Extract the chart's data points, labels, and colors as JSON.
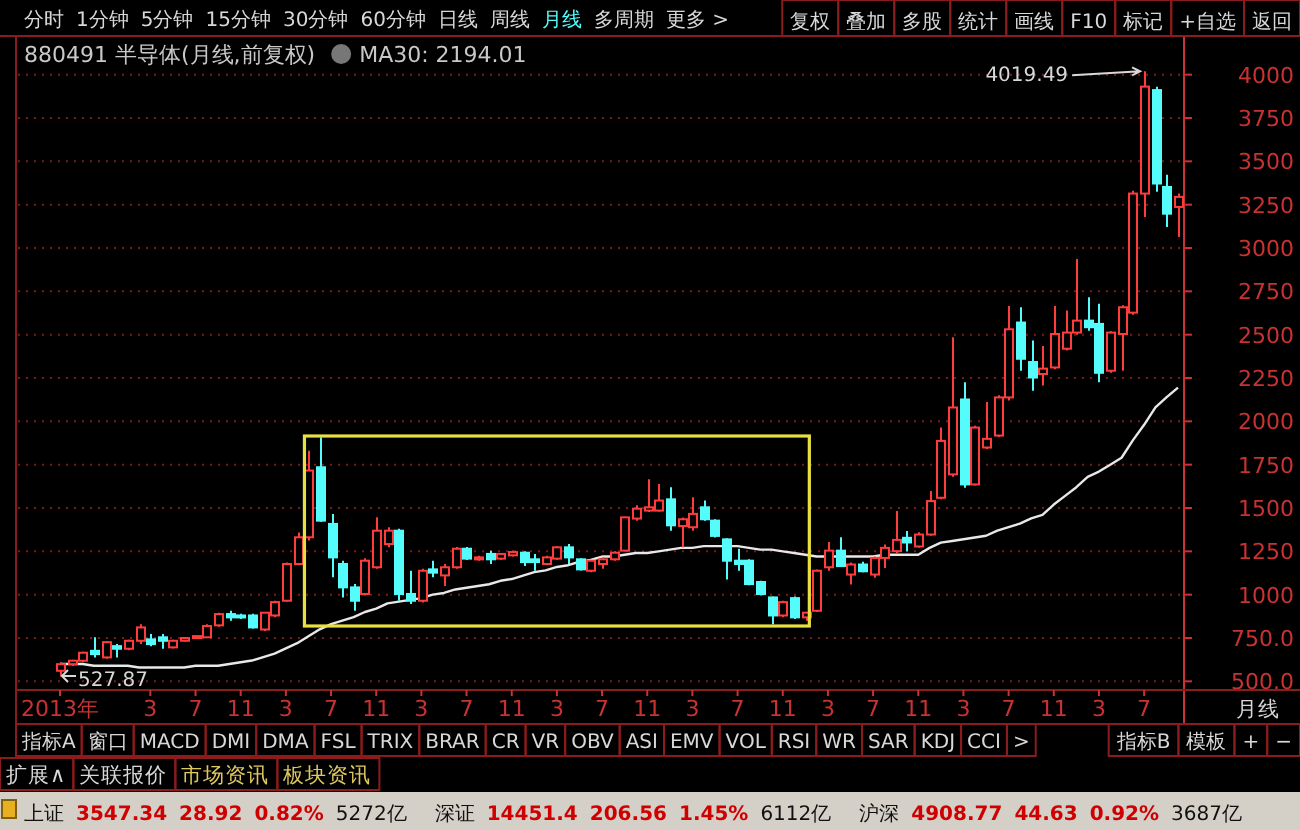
{
  "chart_data": {
    "type": "candlestick",
    "title": "880491 半导体(月线,前复权)",
    "categories": [
      "2013年",
      null,
      null,
      null,
      null,
      null,
      null,
      null,
      "3",
      null,
      null,
      null,
      "7",
      null,
      null,
      null,
      "11",
      null,
      null,
      null,
      "3",
      null,
      null,
      null,
      "7",
      null,
      null,
      null,
      "11",
      null,
      null,
      null,
      "3",
      null,
      null,
      null,
      "7",
      null,
      null,
      null,
      "11",
      null,
      null,
      null,
      "3",
      null,
      null,
      null,
      "7",
      null,
      null,
      null,
      "11",
      null,
      null,
      null,
      "3",
      null,
      null,
      null,
      "7",
      null,
      null,
      null,
      "11",
      null,
      null,
      null,
      "3",
      null,
      null,
      null,
      "7",
      null,
      null,
      null,
      "11",
      null,
      null,
      null,
      "3",
      null,
      null,
      null,
      "7",
      null,
      null,
      null,
      "11",
      null,
      null,
      null,
      "3",
      null,
      null,
      null,
      "7",
      null,
      null,
      null
    ],
    "ohlc": [
      [
        561,
        610,
        527.87,
        599
      ],
      [
        599,
        625,
        590,
        619
      ],
      [
        619,
        670,
        610,
        665
      ],
      [
        676,
        754,
        638,
        657
      ],
      [
        638,
        730,
        630,
        726
      ],
      [
        703,
        715,
        638,
        688
      ],
      [
        688,
        740,
        680,
        734
      ],
      [
        734,
        830,
        715,
        811
      ],
      [
        742,
        773,
        703,
        715
      ],
      [
        754,
        773,
        688,
        734
      ],
      [
        696,
        740,
        690,
        734
      ],
      [
        734,
        755,
        730,
        750
      ],
      [
        750,
        765,
        745,
        761
      ],
      [
        754,
        830,
        750,
        819
      ],
      [
        823,
        895,
        815,
        888
      ],
      [
        888,
        907,
        850,
        869
      ],
      [
        880,
        890,
        860,
        869
      ],
      [
        880,
        890,
        805,
        811
      ],
      [
        799,
        900,
        790,
        896
      ],
      [
        880,
        965,
        870,
        957
      ],
      [
        965,
        1185,
        960,
        1177
      ],
      [
        1177,
        1358,
        1170,
        1331
      ],
      [
        1331,
        1831,
        1312,
        1716
      ],
      [
        1735,
        1908,
        1420,
        1427
      ],
      [
        1408,
        1466,
        1100,
        1215
      ],
      [
        1177,
        1196,
        984,
        1042
      ],
      [
        1042,
        1061,
        907,
        965
      ],
      [
        1004,
        1210,
        995,
        1196
      ],
      [
        1158,
        1446,
        1150,
        1369
      ],
      [
        1292,
        1389,
        1273,
        1369
      ],
      [
        1369,
        1380,
        965,
        1004
      ],
      [
        1004,
        1138,
        946,
        965
      ],
      [
        965,
        1150,
        955,
        1138
      ],
      [
        1146,
        1196,
        1100,
        1127
      ],
      [
        1111,
        1177,
        1050,
        1158
      ],
      [
        1158,
        1275,
        1150,
        1265
      ],
      [
        1265,
        1275,
        1200,
        1208
      ],
      [
        1204,
        1225,
        1195,
        1215
      ],
      [
        1235,
        1254,
        1177,
        1204
      ],
      [
        1208,
        1240,
        1200,
        1235
      ],
      [
        1227,
        1255,
        1220,
        1246
      ],
      [
        1242,
        1250,
        1165,
        1188
      ],
      [
        1204,
        1235,
        1138,
        1188
      ],
      [
        1177,
        1225,
        1170,
        1215
      ],
      [
        1208,
        1280,
        1200,
        1273
      ],
      [
        1273,
        1292,
        1177,
        1215
      ],
      [
        1204,
        1210,
        1140,
        1146
      ],
      [
        1138,
        1200,
        1130,
        1196
      ],
      [
        1177,
        1215,
        1150,
        1204
      ],
      [
        1204,
        1250,
        1195,
        1242
      ],
      [
        1254,
        1450,
        1250,
        1446
      ],
      [
        1439,
        1516,
        1427,
        1496
      ],
      [
        1485,
        1666,
        1477,
        1504
      ],
      [
        1485,
        1639,
        1480,
        1543
      ],
      [
        1550,
        1620,
        1369,
        1400
      ],
      [
        1396,
        1445,
        1273,
        1435
      ],
      [
        1389,
        1562,
        1369,
        1466
      ],
      [
        1504,
        1543,
        1427,
        1435
      ],
      [
        1427,
        1435,
        1330,
        1339
      ],
      [
        1319,
        1325,
        1088,
        1196
      ],
      [
        1196,
        1265,
        1138,
        1177
      ],
      [
        1196,
        1205,
        1055,
        1061
      ],
      [
        1073,
        1080,
        995,
        1004
      ],
      [
        984,
        990,
        830,
        880
      ],
      [
        880,
        965,
        870,
        957
      ],
      [
        980,
        990,
        860,
        869
      ],
      [
        869,
        900,
        850,
        896
      ],
      [
        907,
        1145,
        900,
        1138
      ],
      [
        1158,
        1304,
        1138,
        1254
      ],
      [
        1254,
        1331,
        1160,
        1165
      ],
      [
        1116,
        1185,
        1058,
        1174
      ],
      [
        1174,
        1190,
        1130,
        1135
      ],
      [
        1116,
        1220,
        1097,
        1212
      ],
      [
        1212,
        1289,
        1154,
        1270
      ],
      [
        1251,
        1482,
        1240,
        1316
      ],
      [
        1328,
        1367,
        1251,
        1301
      ],
      [
        1278,
        1360,
        1270,
        1347
      ],
      [
        1347,
        1598,
        1340,
        1540
      ],
      [
        1559,
        1964,
        1550,
        1887
      ],
      [
        1694,
        2485,
        1680,
        2080
      ],
      [
        2126,
        2226,
        1617,
        1636
      ],
      [
        1636,
        1975,
        1630,
        1964
      ],
      [
        1849,
        2111,
        1840,
        1899
      ],
      [
        1918,
        2150,
        1910,
        2138
      ],
      [
        2138,
        2666,
        2120,
        2531
      ],
      [
        2570,
        2658,
        2292,
        2361
      ],
      [
        2342,
        2466,
        2176,
        2253
      ],
      [
        2273,
        2435,
        2207,
        2304
      ],
      [
        2311,
        2666,
        2300,
        2504
      ],
      [
        2419,
        2639,
        2408,
        2512
      ],
      [
        2512,
        2936,
        2500,
        2581
      ],
      [
        2581,
        2716,
        2523,
        2543
      ],
      [
        2562,
        2678,
        2226,
        2280
      ],
      [
        2292,
        2520,
        2280,
        2512
      ],
      [
        2504,
        2670,
        2292,
        2658
      ],
      [
        2627,
        3330,
        2615,
        3314
      ],
      [
        3314,
        4019.49,
        3179,
        3931
      ],
      [
        3911,
        3931,
        3325,
        3372
      ],
      [
        3352,
        3422,
        3121,
        3198
      ],
      [
        3237,
        3314,
        3063,
        3295
      ]
    ],
    "series": [
      {
        "name": "MA30: 2194.01",
        "type": "line",
        "color": "#e8e8e8",
        "values": [
          600,
          600,
          600,
          590,
          590,
          590,
          590,
          580,
          580,
          580,
          580,
          580,
          590,
          590,
          590,
          600,
          610,
          620,
          640,
          660,
          690,
          720,
          760,
          800,
          830,
          850,
          870,
          900,
          920,
          950,
          960,
          970,
          980,
          1000,
          1010,
          1030,
          1040,
          1050,
          1060,
          1080,
          1090,
          1110,
          1130,
          1140,
          1160,
          1170,
          1190,
          1200,
          1220,
          1220,
          1230,
          1240,
          1240,
          1250,
          1260,
          1270,
          1270,
          1280,
          1280,
          1280,
          1280,
          1270,
          1260,
          1260,
          1250,
          1240,
          1230,
          1220,
          1220,
          1220,
          1220,
          1220,
          1220,
          1230,
          1230,
          1230,
          1230,
          1270,
          1300,
          1310,
          1320,
          1330,
          1340,
          1370,
          1390,
          1410,
          1440,
          1460,
          1520,
          1570,
          1620,
          1680,
          1710,
          1750,
          1790,
          1890,
          1980,
          2080,
          2140,
          2194.01
        ]
      }
    ],
    "ylim": [
      450,
      4200
    ],
    "yticks": [
      {
        "value": 500,
        "label": "500.0"
      },
      {
        "value": 750,
        "label": "750.0"
      },
      1000,
      1250,
      1500,
      1750,
      2000,
      2250,
      2500,
      2750,
      3000,
      3250,
      3500,
      3750,
      4000
    ],
    "grid": "y",
    "legend": "top left",
    "annotations": [
      "4019.49",
      "527.87",
      "分时",
      "1分钟",
      "5分钟",
      "15分钟",
      "30分钟",
      "60分钟",
      "日线",
      "周线",
      "月线",
      "多周期",
      "更多 >",
      "复权",
      "叠加",
      "多股",
      "统计",
      "画线",
      "F10",
      "标记",
      "+自选",
      "返回",
      "指标A",
      "窗口",
      "MACD",
      "DMI",
      "DMA",
      "FSL",
      "TRIX",
      "BRAR",
      "CR",
      "VR",
      "OBV",
      "ASI",
      "EMV",
      "VOL",
      "RSI",
      "WR",
      "SAR",
      "KDJ",
      "CCI",
      ">",
      "指标B",
      "模板",
      "+",
      "−",
      "扩展∧",
      "关联报价",
      "市场资讯",
      "板块资讯",
      "上证",
      "3547.34",
      "28.92",
      "0.82%",
      "5272亿",
      "深证",
      "14451.4",
      "206.56",
      "1.45%",
      "6112亿",
      "沪深",
      "4908.77",
      "44.63",
      "0.92%",
      "3687亿",
      "月线"
    ]
  }
}
